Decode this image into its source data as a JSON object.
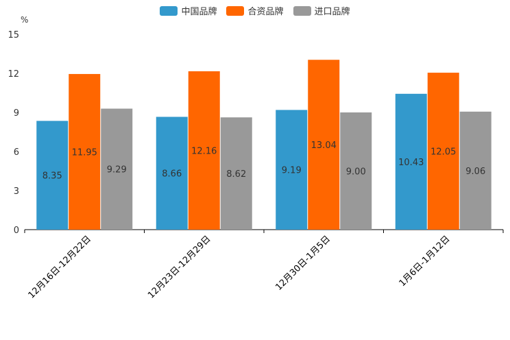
{
  "chart_data": {
    "type": "bar",
    "title": "",
    "unit": "%",
    "xlabel": "",
    "ylabel": "%",
    "ylim": [
      0,
      15
    ],
    "yticks": [
      0,
      3,
      6,
      9,
      12,
      15
    ],
    "categories": [
      "12月16日-12月22日",
      "12月23日-12月29日",
      "12月30日-1月5日",
      "1月6日-1月12日"
    ],
    "series": [
      {
        "name": "中国品牌",
        "color": "#3399cc",
        "values": [
          8.35,
          8.66,
          9.19,
          10.43
        ],
        "labels": [
          "8.35",
          "8.66",
          "9.19",
          "10.43"
        ]
      },
      {
        "name": "合资品牌",
        "color": "#ff6600",
        "values": [
          11.95,
          12.16,
          13.04,
          12.05
        ],
        "labels": [
          "11.95",
          "12.16",
          "13.04",
          "12.05"
        ]
      },
      {
        "name": "进口品牌",
        "color": "#999999",
        "values": [
          9.29,
          8.62,
          9.0,
          9.06
        ],
        "labels": [
          "9.29",
          "8.62",
          "9.00",
          "9.06"
        ]
      }
    ],
    "legend": "top-center",
    "grid": false
  }
}
